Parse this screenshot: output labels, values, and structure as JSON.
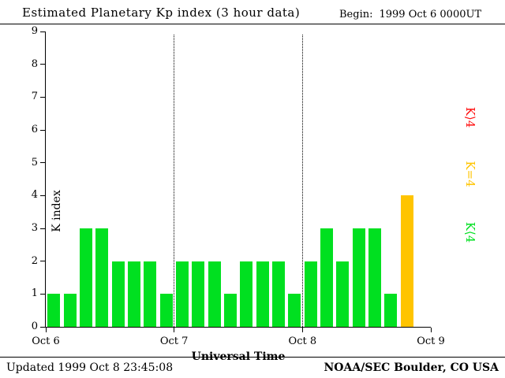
{
  "header": {
    "title": "Estimated Planetary Kp index (3 hour data)",
    "begin_label": "Begin:",
    "begin_value": "1999 Oct 6 0000UT"
  },
  "footer": {
    "updated": "Updated 1999 Oct 8 23:45:08",
    "org": "NOAA/SEC Boulder, CO USA"
  },
  "legend": [
    {
      "id": "high",
      "label": "K⟩4",
      "color": "#ff1010"
    },
    {
      "id": "mid",
      "label": "K=4",
      "color": "#ffc400"
    },
    {
      "id": "low",
      "label": "K⟨4",
      "color": "#00e020"
    }
  ],
  "chart_data": {
    "type": "bar",
    "title": "Estimated Planetary Kp index (3 hour data)",
    "xlabel": "Universal Time",
    "ylabel": "K index",
    "ylim": [
      0,
      9
    ],
    "x_ticks": [
      "Oct 6",
      "Oct 7",
      "Oct 8",
      "Oct 9"
    ],
    "slots_per_day": 8,
    "days": 3,
    "interval_hours": 3,
    "values": [
      1,
      1,
      3,
      3,
      2,
      2,
      2,
      1,
      2,
      2,
      2,
      1,
      2,
      2,
      2,
      1,
      2,
      3,
      2,
      3,
      3,
      1,
      4
    ],
    "thresholds": {
      "mid": 4
    },
    "colors": {
      "low": "#00e020",
      "mid": "#ffc400",
      "high": "#ff1010"
    },
    "grid": "dotted vertical lines at day boundaries",
    "legend_position": "right, rotated 90deg"
  }
}
